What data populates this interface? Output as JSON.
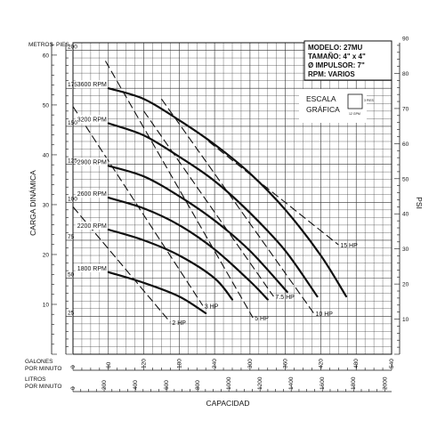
{
  "chart_data": {
    "type": "line",
    "header": {
      "left_units": "METROS",
      "right_units": "PIES"
    },
    "ylabel_left": "CARGA DINÁMICA",
    "ylabel_right": "PSI",
    "xlabel": "CAPACIDAD",
    "gpm_axis": {
      "label_line1": "GALONES",
      "label_line2": "POR MINUTO",
      "ticks": [
        "0",
        "60",
        "120",
        "180",
        "240",
        "300",
        "360",
        "420",
        "480",
        "540"
      ]
    },
    "lpm_axis": {
      "label_line1": "LITROS",
      "label_line2": "POR MINUTO",
      "ticks": [
        "0",
        "200",
        "400",
        "600",
        "800",
        "1000",
        "1200",
        "1400",
        "1600",
        "1800",
        "2000"
      ]
    },
    "metros_ticks": [
      "10",
      "20",
      "30",
      "40",
      "50",
      "60"
    ],
    "pies_ticks": [
      "25",
      "50",
      "75",
      "100",
      "125",
      "150",
      "175",
      "200"
    ],
    "psi_ticks": [
      "10",
      "20",
      "30",
      "40",
      "50",
      "60",
      "70",
      "80",
      "90"
    ],
    "xlim_gpm": [
      0,
      540
    ],
    "ylim_feet": [
      0,
      205
    ],
    "info": {
      "modelo": "MODELO: 27MU",
      "tamano": "TAMAÑO: 4\" x 4\"",
      "impulsor": "Ø IMPULSOR: 7\"",
      "rpm": "RPM: VARIOS"
    },
    "escala": {
      "line1": "ESCALA",
      "line2": "GRÁFICA",
      "side": "3 PIES",
      "bottom": "12 GPM"
    },
    "series": [
      {
        "name": "3600 RPM",
        "gpm": [
          60,
          120,
          180,
          240,
          300,
          360,
          420,
          463
        ],
        "feet": [
          175,
          168,
          154,
          138,
          119,
          95,
          65,
          38
        ]
      },
      {
        "name": "3200 RPM",
        "gpm": [
          60,
          120,
          180,
          240,
          300,
          360,
          414
        ],
        "feet": [
          152,
          144,
          130,
          114,
          93,
          68,
          38
        ]
      },
      {
        "name": "2900 RPM",
        "gpm": [
          60,
          120,
          180,
          240,
          300,
          363
        ],
        "feet": [
          124,
          117,
          104,
          88,
          68,
          41
        ]
      },
      {
        "name": "2600 RPM",
        "gpm": [
          60,
          120,
          180,
          240,
          300,
          330
        ],
        "feet": [
          103,
          96,
          85,
          69,
          48,
          36
        ]
      },
      {
        "name": "2200 RPM",
        "gpm": [
          60,
          120,
          180,
          240,
          270
        ],
        "feet": [
          82,
          75,
          65,
          50,
          36
        ]
      },
      {
        "name": "1800 RPM",
        "gpm": [
          60,
          120,
          180,
          225
        ],
        "feet": [
          54,
          47,
          38,
          27
        ]
      }
    ],
    "hp_lines": [
      {
        "name": "2 HP",
        "gpm": [
          0,
          165
        ],
        "feet": [
          97,
          21
        ]
      },
      {
        "name": "3 HP",
        "gpm": [
          0,
          220
        ],
        "feet": [
          163,
          32
        ]
      },
      {
        "name": "5 HP",
        "gpm": [
          55,
          305
        ],
        "feet": [
          193,
          24
        ]
      },
      {
        "name": "7.5 HP",
        "gpm": [
          120,
          340
        ],
        "feet": [
          160,
          38
        ]
      },
      {
        "name": "10 HP",
        "gpm": [
          150,
          408
        ],
        "feet": [
          168,
          27
        ]
      },
      {
        "name": "15 HP",
        "gpm": [
          230,
          450
        ],
        "feet": [
          140,
          72
        ]
      }
    ]
  }
}
